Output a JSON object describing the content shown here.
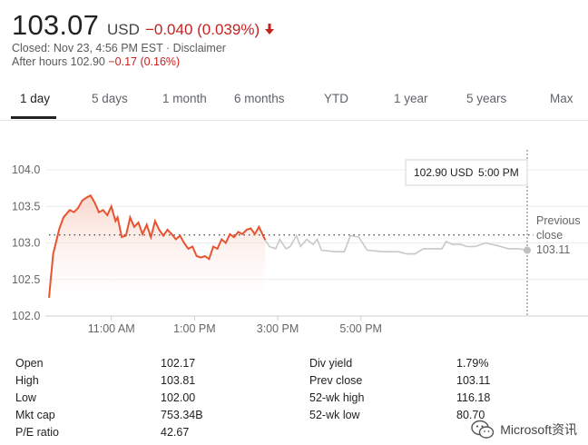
{
  "quote": {
    "price": "103.07",
    "currency": "USD",
    "change": "−0.040 (0.039%)",
    "closed_line": "Closed: Nov 23, 4:56 PM EST · Disclaimer",
    "after_hours_label": "After hours 102.90",
    "after_hours_change": "−0.17 (0.16%)"
  },
  "tabs": [
    "1 day",
    "5 days",
    "1 month",
    "6 months",
    "YTD",
    "1 year",
    "5 years",
    "Max"
  ],
  "tooltip": {
    "price": "102.90 USD",
    "time": "5:00 PM"
  },
  "prev_close_label": {
    "line1": "Previous",
    "line2": "close",
    "value": "103.11"
  },
  "colors": {
    "up_line": "#e8542f",
    "after_hours_line": "#c8c8c8",
    "negative": "#c5221f",
    "dotted": "#555555"
  },
  "chart_data": {
    "type": "line",
    "ylim": [
      102.0,
      104.0
    ],
    "yticks": [
      "104.0",
      "103.5",
      "103.0",
      "102.5",
      "102.0"
    ],
    "xticks": [
      "11:00 AM",
      "1:00 PM",
      "3:00 PM",
      "5:00 PM"
    ],
    "previous_close": 103.11,
    "series": [
      {
        "segment": "regular",
        "points": [
          [
            9.5,
            102.25
          ],
          [
            9.6,
            102.85
          ],
          [
            9.75,
            103.2
          ],
          [
            9.85,
            103.35
          ],
          [
            10.0,
            103.45
          ],
          [
            10.1,
            103.42
          ],
          [
            10.2,
            103.48
          ],
          [
            10.3,
            103.58
          ],
          [
            10.4,
            103.62
          ],
          [
            10.5,
            103.65
          ],
          [
            10.6,
            103.55
          ],
          [
            10.7,
            103.42
          ],
          [
            10.8,
            103.45
          ],
          [
            10.9,
            103.38
          ],
          [
            11.0,
            103.5
          ],
          [
            11.1,
            103.3
          ],
          [
            11.15,
            103.35
          ],
          [
            11.25,
            103.08
          ],
          [
            11.35,
            103.1
          ],
          [
            11.45,
            103.35
          ],
          [
            11.55,
            103.22
          ],
          [
            11.65,
            103.28
          ],
          [
            11.75,
            103.12
          ],
          [
            11.85,
            103.25
          ],
          [
            11.95,
            103.08
          ],
          [
            12.05,
            103.3
          ],
          [
            12.15,
            103.18
          ],
          [
            12.25,
            103.1
          ],
          [
            12.35,
            103.18
          ],
          [
            12.45,
            103.12
          ],
          [
            12.55,
            103.05
          ],
          [
            12.65,
            103.1
          ],
          [
            12.75,
            103.0
          ],
          [
            12.85,
            102.92
          ],
          [
            12.95,
            102.95
          ],
          [
            13.05,
            102.82
          ],
          [
            13.15,
            102.8
          ],
          [
            13.25,
            102.82
          ],
          [
            13.35,
            102.78
          ],
          [
            13.45,
            102.95
          ],
          [
            13.55,
            102.92
          ],
          [
            13.65,
            103.05
          ],
          [
            13.75,
            103.0
          ],
          [
            13.85,
            103.12
          ],
          [
            13.95,
            103.08
          ],
          [
            14.05,
            103.15
          ],
          [
            14.15,
            103.12
          ],
          [
            14.25,
            103.18
          ],
          [
            14.35,
            103.2
          ],
          [
            14.45,
            103.12
          ],
          [
            14.55,
            103.22
          ],
          [
            14.65,
            103.1
          ],
          [
            14.7,
            103.04
          ]
        ]
      },
      {
        "segment": "after_hours",
        "points": [
          [
            14.7,
            103.04
          ],
          [
            14.8,
            102.95
          ],
          [
            14.95,
            102.92
          ],
          [
            15.05,
            103.05
          ],
          [
            15.2,
            102.92
          ],
          [
            15.3,
            102.95
          ],
          [
            15.45,
            103.1
          ],
          [
            15.55,
            102.95
          ],
          [
            15.7,
            103.05
          ],
          [
            15.85,
            102.98
          ],
          [
            15.95,
            103.05
          ],
          [
            16.05,
            102.9
          ],
          [
            16.4,
            102.88
          ],
          [
            16.6,
            102.88
          ],
          [
            16.75,
            103.1
          ],
          [
            16.95,
            103.08
          ],
          [
            17.15,
            102.9
          ],
          [
            17.55,
            102.88
          ],
          [
            17.9,
            102.88
          ],
          [
            18.1,
            102.85
          ],
          [
            18.3,
            102.85
          ],
          [
            18.5,
            102.92
          ],
          [
            18.75,
            102.92
          ],
          [
            18.95,
            102.92
          ],
          [
            19.05,
            103.02
          ],
          [
            19.2,
            102.98
          ],
          [
            19.4,
            102.98
          ],
          [
            19.55,
            102.95
          ],
          [
            19.75,
            102.95
          ],
          [
            20.0,
            103.0
          ],
          [
            20.3,
            102.96
          ],
          [
            20.55,
            102.92
          ],
          [
            20.8,
            102.92
          ],
          [
            21.0,
            102.9
          ]
        ]
      }
    ]
  },
  "stats": {
    "left": [
      {
        "label": "Open",
        "value": "102.17"
      },
      {
        "label": "High",
        "value": "103.81"
      },
      {
        "label": "Low",
        "value": "102.00"
      },
      {
        "label": "Mkt cap",
        "value": "753.34B"
      },
      {
        "label": "P/E ratio",
        "value": "42.67"
      }
    ],
    "right": [
      {
        "label": "Div yield",
        "value": "1.79%"
      },
      {
        "label": "Prev close",
        "value": "103.11"
      },
      {
        "label": "52-wk high",
        "value": "116.18"
      },
      {
        "label": "52-wk low",
        "value": "80.70"
      }
    ]
  },
  "watermark": {
    "text": "Microsoft资讯",
    "icon": "wechat-icon"
  }
}
